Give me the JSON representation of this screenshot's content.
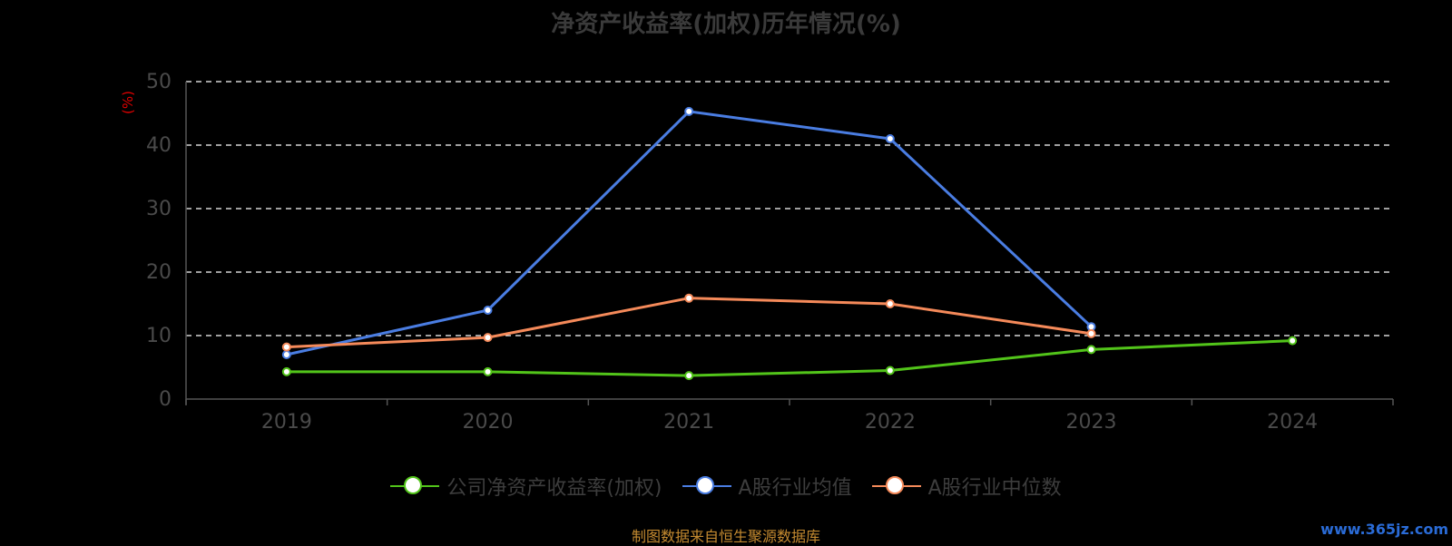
{
  "chart_data": {
    "type": "line",
    "title": "净资产收益率(加权)历年情况(%)",
    "ylabel": "(%)",
    "categories": [
      "2019",
      "2020",
      "2021",
      "2022",
      "2023",
      "2024"
    ],
    "ylim": [
      0,
      50
    ],
    "yticks": [
      0,
      10,
      20,
      30,
      40,
      50
    ],
    "grid": true,
    "legend_position": "bottom",
    "series": [
      {
        "name": "公司净资产收益率(加权)",
        "color": "#52c41a",
        "values": [
          4.3,
          4.3,
          3.7,
          4.5,
          7.8,
          9.2
        ]
      },
      {
        "name": "A股行业均值",
        "color": "#4a7de2",
        "values": [
          7.0,
          14.0,
          45.3,
          41.0,
          11.4,
          null
        ]
      },
      {
        "name": "A股行业中位数",
        "color": "#f58a5a",
        "values": [
          8.2,
          9.7,
          15.9,
          15.0,
          10.3,
          null
        ]
      }
    ]
  },
  "footer": {
    "source": "制图数据来自恒生聚源数据库",
    "watermark": "www.365jz.com"
  }
}
